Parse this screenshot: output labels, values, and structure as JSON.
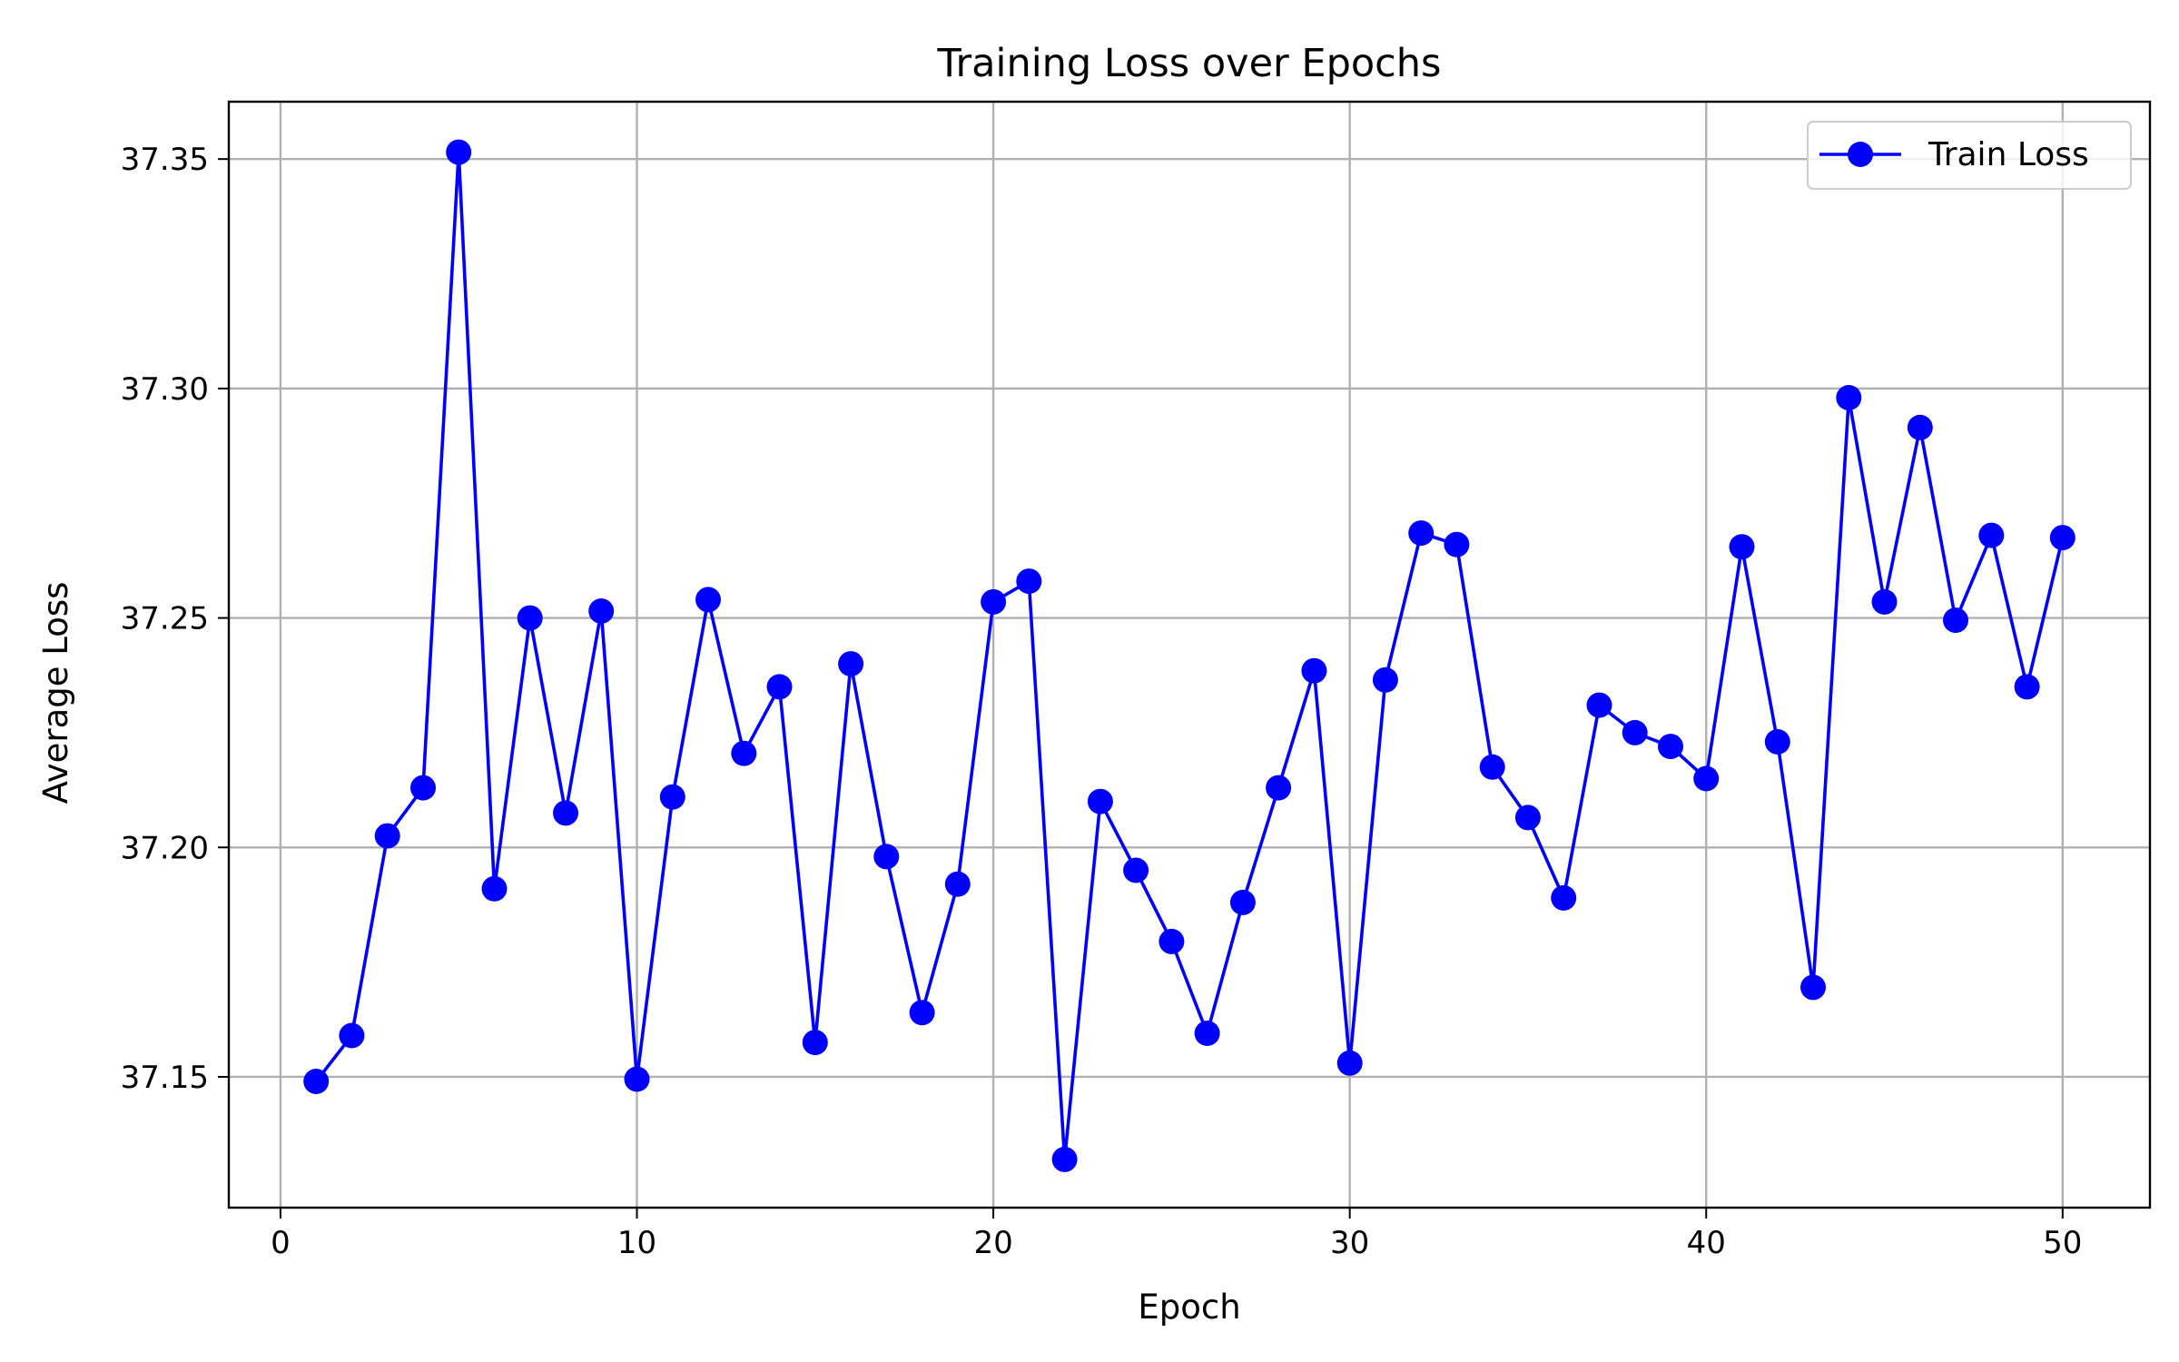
{
  "chart_data": {
    "type": "line",
    "title": "Training Loss over Epochs",
    "xlabel": "Epoch",
    "ylabel": "Average Loss",
    "xlim": [
      -1.45,
      52.45
    ],
    "ylim": [
      37.1215,
      37.3625
    ],
    "xticks": [
      0,
      10,
      20,
      30,
      40,
      50
    ],
    "yticks": [
      37.15,
      37.2,
      37.25,
      37.3,
      37.35
    ],
    "ytick_labels": [
      "37.15",
      "37.20",
      "37.25",
      "37.30",
      "37.35"
    ],
    "grid": true,
    "legend_position": "top-right",
    "series": [
      {
        "name": "Train Loss",
        "color": "#0000ff",
        "marker": "circle",
        "x": [
          1,
          2,
          3,
          4,
          5,
          6,
          7,
          8,
          9,
          10,
          11,
          12,
          13,
          14,
          15,
          16,
          17,
          18,
          19,
          20,
          21,
          22,
          23,
          24,
          25,
          26,
          27,
          28,
          29,
          30,
          31,
          32,
          33,
          34,
          35,
          36,
          37,
          38,
          39,
          40,
          41,
          42,
          43,
          44,
          45,
          46,
          47,
          48,
          49,
          50
        ],
        "y": [
          37.149,
          37.159,
          37.2025,
          37.213,
          37.3515,
          37.191,
          37.25,
          37.2075,
          37.2515,
          37.1495,
          37.211,
          37.254,
          37.2205,
          37.235,
          37.1575,
          37.24,
          37.198,
          37.164,
          37.192,
          37.2535,
          37.258,
          37.132,
          37.21,
          37.195,
          37.1795,
          37.1595,
          37.188,
          37.213,
          37.2385,
          37.153,
          37.2365,
          37.2685,
          37.266,
          37.2175,
          37.2065,
          37.189,
          37.231,
          37.225,
          37.222,
          37.215,
          37.2655,
          37.223,
          37.1695,
          37.298,
          37.2535,
          37.2915,
          37.2495,
          37.268,
          37.235,
          37.2675
        ]
      }
    ]
  }
}
